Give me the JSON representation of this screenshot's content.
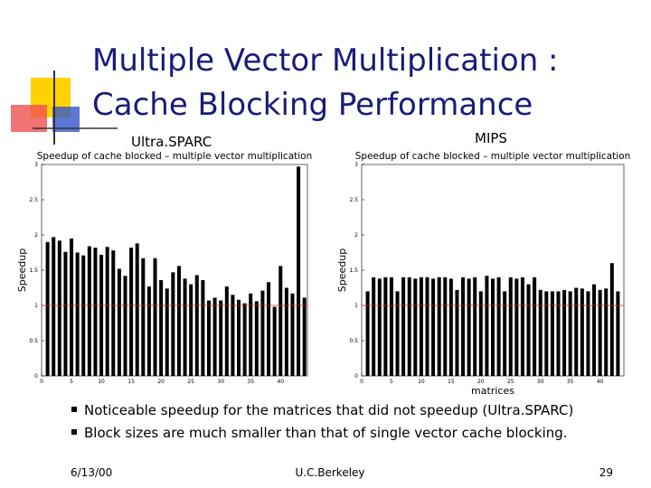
{
  "slide_title": [
    "Multiple Vector Multiplication :",
    "Cache Blocking Performance"
  ],
  "chart_headings": [
    "Ultra.SPARC",
    "MIPS"
  ],
  "chart_data": [
    {
      "type": "bar",
      "title": "Speedup of cache blocked – multiple vector multiplication",
      "ylabel": "Speedup",
      "color": "#000000",
      "x": [
        1,
        2,
        3,
        4,
        5,
        6,
        7,
        8,
        9,
        10,
        11,
        12,
        13,
        14,
        15,
        16,
        17,
        18,
        19,
        20,
        21,
        22,
        23,
        24,
        25,
        26,
        27,
        28,
        29,
        30,
        31,
        32,
        33,
        34,
        35,
        36,
        37,
        38,
        39,
        40,
        41,
        42,
        43,
        44
      ],
      "values": [
        1.9,
        1.97,
        1.92,
        1.76,
        1.95,
        1.75,
        1.71,
        1.84,
        1.82,
        1.72,
        1.83,
        1.78,
        1.52,
        1.42,
        1.82,
        1.88,
        1.67,
        1.27,
        1.67,
        1.36,
        1.24,
        1.47,
        1.56,
        1.38,
        1.3,
        1.43,
        1.36,
        1.07,
        1.11,
        1.07,
        1.27,
        1.15,
        1.08,
        1.03,
        1.17,
        1.06,
        1.21,
        1.33,
        0.98,
        1.56,
        1.25,
        1.17,
        2.97,
        1.11
      ],
      "xlim": [
        0,
        44.5
      ],
      "xticks": [
        0,
        5,
        10,
        15,
        20,
        25,
        30,
        35,
        40
      ],
      "ylim": [
        0,
        3
      ],
      "yticks": [
        0,
        0.5,
        1,
        1.5,
        2,
        2.5,
        3
      ],
      "reference_line": 1,
      "reference_color": "#cc3333"
    },
    {
      "type": "bar",
      "title": "Speedup of cache blocked – multiple vector multiplication",
      "ylabel": "Speedup",
      "xlabel": "matrices",
      "color": "#000000",
      "x": [
        1,
        2,
        3,
        4,
        5,
        6,
        7,
        8,
        9,
        10,
        11,
        12,
        13,
        14,
        15,
        16,
        17,
        18,
        19,
        20,
        21,
        22,
        23,
        24,
        25,
        26,
        27,
        28,
        29,
        30,
        31,
        32,
        33,
        34,
        35,
        36,
        37,
        38,
        39,
        40,
        41,
        42,
        43
      ],
      "values": [
        1.2,
        1.4,
        1.38,
        1.4,
        1.4,
        1.2,
        1.4,
        1.4,
        1.38,
        1.4,
        1.4,
        1.38,
        1.4,
        1.4,
        1.38,
        1.22,
        1.4,
        1.38,
        1.4,
        1.2,
        1.42,
        1.38,
        1.4,
        1.2,
        1.4,
        1.38,
        1.4,
        1.3,
        1.4,
        1.22,
        1.2,
        1.2,
        1.2,
        1.22,
        1.2,
        1.25,
        1.24,
        1.2,
        1.3,
        1.22,
        1.24,
        1.6,
        1.2
      ],
      "xlim": [
        0,
        44
      ],
      "xticks": [
        0,
        5,
        10,
        15,
        20,
        25,
        30,
        35,
        40
      ],
      "ylim": [
        0,
        3
      ],
      "yticks": [
        0,
        0.5,
        1,
        1.5,
        2,
        2.5,
        3
      ],
      "reference_line": 1,
      "reference_color": "#cc3333"
    }
  ],
  "bullets": [
    "Noticeable speedup for the matrices that did not speedup (Ultra.SPARC)",
    "Block sizes are much smaller than that of single vector cache blocking."
  ],
  "footer": {
    "date": "6/13/00",
    "center": "U.C.Berkeley",
    "page": "29"
  }
}
